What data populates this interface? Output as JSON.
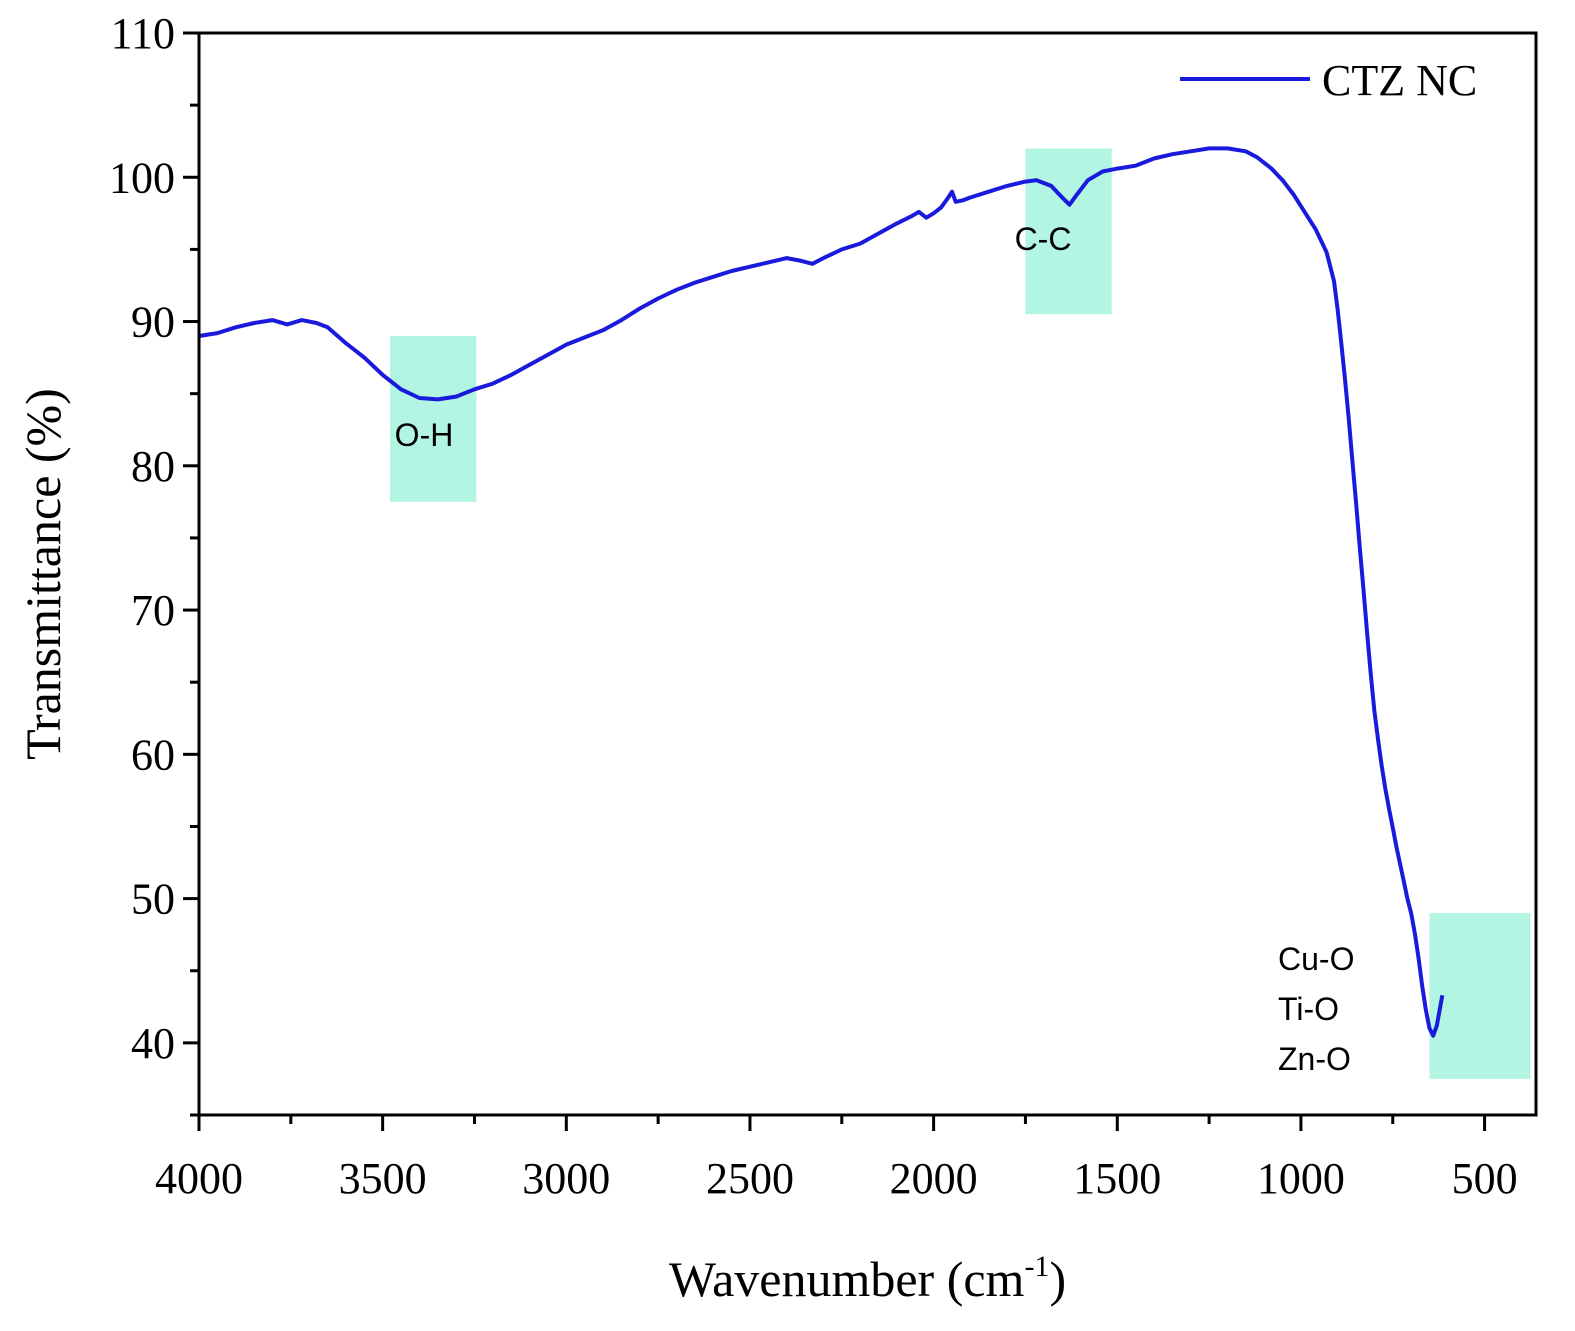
{
  "chart_data": {
    "type": "line",
    "xlabel_main": "Wavenumber (cm",
    "xlabel_sup": "-1",
    "xlabel_close": ")",
    "ylabel": "Transmittance (%)",
    "xlim": [
      4000,
      360
    ],
    "ylim": [
      35,
      110
    ],
    "x_reversed": true,
    "x_ticks": [
      {
        "value": 4000,
        "label": "4000"
      },
      {
        "value": 3500,
        "label": "3500"
      },
      {
        "value": 3000,
        "label": "3000"
      },
      {
        "value": 2500,
        "label": "2500"
      },
      {
        "value": 2000,
        "label": "2000"
      },
      {
        "value": 1500,
        "label": "1500"
      },
      {
        "value": 1000,
        "label": "1000"
      },
      {
        "value": 500,
        "label": "500"
      }
    ],
    "y_ticks": [
      {
        "value": 40,
        "label": "40"
      },
      {
        "value": 50,
        "label": "50"
      },
      {
        "value": 60,
        "label": "60"
      },
      {
        "value": 70,
        "label": "70"
      },
      {
        "value": 80,
        "label": "80"
      },
      {
        "value": 90,
        "label": "90"
      },
      {
        "value": 100,
        "label": "100"
      },
      {
        "value": 110,
        "label": "110"
      }
    ],
    "legend_position": "top-right",
    "grid": false,
    "series": [
      {
        "name": "CTZ NC",
        "color": "#1a1adc",
        "points": [
          [
            4000,
            89.0
          ],
          [
            3950,
            89.2
          ],
          [
            3900,
            89.6
          ],
          [
            3850,
            89.9
          ],
          [
            3800,
            90.1
          ],
          [
            3760,
            89.8
          ],
          [
            3720,
            90.1
          ],
          [
            3680,
            89.9
          ],
          [
            3650,
            89.6
          ],
          [
            3600,
            88.5
          ],
          [
            3550,
            87.5
          ],
          [
            3500,
            86.3
          ],
          [
            3450,
            85.3
          ],
          [
            3400,
            84.7
          ],
          [
            3350,
            84.6
          ],
          [
            3300,
            84.8
          ],
          [
            3250,
            85.3
          ],
          [
            3200,
            85.7
          ],
          [
            3150,
            86.3
          ],
          [
            3100,
            87.0
          ],
          [
            3050,
            87.7
          ],
          [
            3000,
            88.4
          ],
          [
            2950,
            88.9
          ],
          [
            2900,
            89.4
          ],
          [
            2850,
            90.1
          ],
          [
            2800,
            90.9
          ],
          [
            2750,
            91.6
          ],
          [
            2700,
            92.2
          ],
          [
            2650,
            92.7
          ],
          [
            2600,
            93.1
          ],
          [
            2550,
            93.5
          ],
          [
            2500,
            93.8
          ],
          [
            2450,
            94.1
          ],
          [
            2400,
            94.4
          ],
          [
            2360,
            94.2
          ],
          [
            2330,
            94.0
          ],
          [
            2300,
            94.4
          ],
          [
            2250,
            95.0
          ],
          [
            2200,
            95.4
          ],
          [
            2150,
            96.1
          ],
          [
            2100,
            96.8
          ],
          [
            2060,
            97.3
          ],
          [
            2040,
            97.6
          ],
          [
            2020,
            97.2
          ],
          [
            2000,
            97.5
          ],
          [
            1980,
            97.9
          ],
          [
            1960,
            98.6
          ],
          [
            1950,
            99.0
          ],
          [
            1940,
            98.3
          ],
          [
            1920,
            98.4
          ],
          [
            1900,
            98.6
          ],
          [
            1850,
            99.0
          ],
          [
            1800,
            99.4
          ],
          [
            1750,
            99.7
          ],
          [
            1720,
            99.8
          ],
          [
            1680,
            99.4
          ],
          [
            1650,
            98.6
          ],
          [
            1630,
            98.1
          ],
          [
            1610,
            98.8
          ],
          [
            1580,
            99.8
          ],
          [
            1540,
            100.4
          ],
          [
            1500,
            100.6
          ],
          [
            1450,
            100.8
          ],
          [
            1400,
            101.3
          ],
          [
            1350,
            101.6
          ],
          [
            1300,
            101.8
          ],
          [
            1250,
            102.0
          ],
          [
            1200,
            102.0
          ],
          [
            1150,
            101.8
          ],
          [
            1120,
            101.4
          ],
          [
            1080,
            100.6
          ],
          [
            1050,
            99.8
          ],
          [
            1020,
            98.8
          ],
          [
            990,
            97.6
          ],
          [
            960,
            96.4
          ],
          [
            930,
            94.8
          ],
          [
            910,
            92.8
          ],
          [
            900,
            90.8
          ],
          [
            890,
            88.5
          ],
          [
            880,
            86.0
          ],
          [
            870,
            83.3
          ],
          [
            860,
            80.4
          ],
          [
            850,
            77.5
          ],
          [
            840,
            74.4
          ],
          [
            830,
            71.5
          ],
          [
            820,
            68.5
          ],
          [
            810,
            65.6
          ],
          [
            800,
            63.0
          ],
          [
            790,
            61.0
          ],
          [
            780,
            59.2
          ],
          [
            770,
            57.6
          ],
          [
            760,
            56.2
          ],
          [
            750,
            54.9
          ],
          [
            740,
            53.6
          ],
          [
            730,
            52.4
          ],
          [
            720,
            51.2
          ],
          [
            710,
            50.0
          ],
          [
            700,
            49.0
          ],
          [
            690,
            47.6
          ],
          [
            680,
            45.9
          ],
          [
            670,
            44.0
          ],
          [
            660,
            42.3
          ],
          [
            650,
            41.0
          ],
          [
            640,
            40.5
          ],
          [
            630,
            41.2
          ],
          [
            620,
            42.6
          ],
          [
            615,
            43.3
          ]
        ]
      }
    ],
    "highlight_color": "#b3f5e3",
    "annotations": [
      {
        "label_lines": [
          "O-H"
        ],
        "band": [
          3480,
          3245
        ],
        "range": [
          77.5,
          89.0
        ]
      },
      {
        "label_lines": [
          "C-C"
        ],
        "band": [
          1750,
          1515
        ],
        "range": [
          90.5,
          102.0
        ]
      },
      {
        "label_lines": [
          "Cu-O",
          "Ti-O",
          "Zn-O"
        ],
        "band": [
          650,
          375
        ],
        "range": [
          37.5,
          49.0
        ]
      }
    ]
  }
}
